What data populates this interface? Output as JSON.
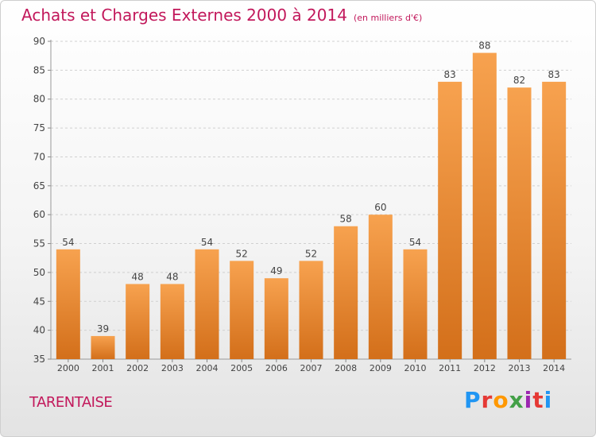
{
  "header": {
    "title": "Achats et Charges Externes 2000 à 2014",
    "subtitle": "(en milliers d'€)"
  },
  "footer": {
    "commune": "TARENTAISE",
    "logo_text": "Proxiti",
    "logo_colors": [
      "#2196f3",
      "#e53935",
      "#ff9800",
      "#43a047",
      "#9c27b0",
      "#e53935",
      "#2196f3"
    ]
  },
  "colors": {
    "bar_light": "#f7a24f",
    "bar_dark": "#d36f1a",
    "title": "#c2185b",
    "grid": "#d0d0d0",
    "text": "#444444"
  },
  "chart_data": {
    "type": "bar",
    "categories": [
      "2000",
      "2001",
      "2002",
      "2003",
      "2004",
      "2005",
      "2006",
      "2007",
      "2008",
      "2009",
      "2010",
      "2011",
      "2012",
      "2013",
      "2014"
    ],
    "values": [
      54,
      39,
      48,
      48,
      54,
      52,
      49,
      52,
      58,
      60,
      54,
      83,
      88,
      82,
      83
    ],
    "ylim": [
      35,
      90
    ],
    "yticks": [
      35,
      40,
      45,
      50,
      55,
      60,
      65,
      70,
      75,
      80,
      85,
      90
    ],
    "grid": "horizontal dashed",
    "data_labels": true
  }
}
